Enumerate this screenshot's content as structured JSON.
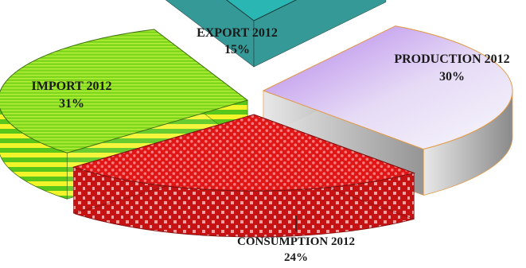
{
  "chart_data": {
    "type": "pie",
    "title": "",
    "categories": [
      "EXPORT 2012",
      "PRODUCTION 2012",
      "CONSUMPTION 2012",
      "IMPORT 2012"
    ],
    "values": [
      15,
      30,
      24,
      31
    ],
    "labels": [
      {
        "name": "EXPORT 2012",
        "pct": "15%"
      },
      {
        "name": "PRODUCTION 2012",
        "pct": "30%"
      },
      {
        "name": "CONSUMPTION 2012",
        "pct": "24%"
      },
      {
        "name": "IMPORT 2012",
        "pct": "31%"
      }
    ],
    "colors": {
      "EXPORT 2012": "#2ab7b3",
      "PRODUCTION 2012": "#c9a6f0",
      "CONSUMPTION 2012": "#e41b1b",
      "IMPORT 2012": "#7bd81f"
    },
    "style": "3d-exploded-pie"
  }
}
